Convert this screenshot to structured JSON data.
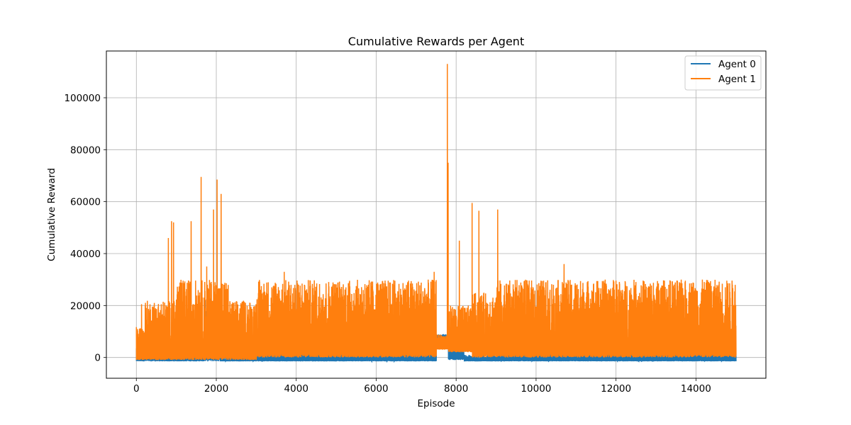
{
  "chart_data": {
    "type": "line",
    "title": "Cumulative Rewards per Agent",
    "xlabel": "Episode",
    "ylabel": "Cumulative Reward",
    "xlim": [
      -750,
      15750
    ],
    "ylim": [
      -8000,
      118000
    ],
    "xticks": [
      0,
      2000,
      4000,
      6000,
      8000,
      10000,
      12000,
      14000
    ],
    "yticks": [
      0,
      20000,
      40000,
      60000,
      80000,
      100000
    ],
    "grid": true,
    "legend_position": "top-right",
    "series": [
      {
        "name": "Agent 0",
        "color": "#1f77b4",
        "segments": [
          {
            "x0": 0,
            "x1": 100,
            "low": -1500,
            "high": 5000
          },
          {
            "x0": 100,
            "x1": 500,
            "low": -1500,
            "high": 9500
          },
          {
            "x0": 500,
            "x1": 1000,
            "low": -1500,
            "high": 4000
          },
          {
            "x0": 1000,
            "x1": 1700,
            "low": -1500,
            "high": 6000
          },
          {
            "x0": 1700,
            "x1": 2100,
            "low": -1500,
            "high": 23000
          },
          {
            "x0": 2100,
            "x1": 3000,
            "low": -1500,
            "high": 1500
          },
          {
            "x0": 3000,
            "x1": 7500,
            "low": -1500,
            "high": 3000
          },
          {
            "x0": 7500,
            "x1": 7800,
            "low": 6000,
            "high": 9000
          },
          {
            "x0": 7800,
            "x1": 8200,
            "low": -1000,
            "high": 11000
          },
          {
            "x0": 8200,
            "x1": 9000,
            "low": -1500,
            "high": 1000
          },
          {
            "x0": 9000,
            "x1": 15000,
            "low": -1500,
            "high": 3000
          }
        ]
      },
      {
        "name": "Agent 1",
        "color": "#ff7f0e",
        "segments": [
          {
            "x0": 0,
            "x1": 200,
            "low": -1000,
            "high": 12000
          },
          {
            "x0": 200,
            "x1": 1000,
            "low": -1000,
            "high": 22000
          },
          {
            "x0": 1000,
            "x1": 2300,
            "low": -1000,
            "high": 30000
          },
          {
            "x0": 2300,
            "x1": 3000,
            "low": -1000,
            "high": 22000
          },
          {
            "x0": 3000,
            "x1": 7500,
            "low": 0,
            "high": 30000
          },
          {
            "x0": 7500,
            "x1": 7800,
            "low": 3000,
            "high": 9000
          },
          {
            "x0": 7800,
            "x1": 8400,
            "low": 2000,
            "high": 20000
          },
          {
            "x0": 8400,
            "x1": 9000,
            "low": 0,
            "high": 25000
          },
          {
            "x0": 9000,
            "x1": 15000,
            "low": 0,
            "high": 30000
          }
        ],
        "peaks": [
          {
            "x": 130,
            "y": 20500
          },
          {
            "x": 430,
            "y": 19000
          },
          {
            "x": 800,
            "y": 46000
          },
          {
            "x": 880,
            "y": 52500
          },
          {
            "x": 930,
            "y": 52000
          },
          {
            "x": 1370,
            "y": 52500
          },
          {
            "x": 1620,
            "y": 69500
          },
          {
            "x": 1760,
            "y": 35000
          },
          {
            "x": 1930,
            "y": 57000
          },
          {
            "x": 2020,
            "y": 68500
          },
          {
            "x": 2120,
            "y": 63000
          },
          {
            "x": 3700,
            "y": 33000
          },
          {
            "x": 7450,
            "y": 33000
          },
          {
            "x": 7780,
            "y": 113000
          },
          {
            "x": 7800,
            "y": 75000
          },
          {
            "x": 8080,
            "y": 45000
          },
          {
            "x": 8400,
            "y": 59500
          },
          {
            "x": 8570,
            "y": 56500
          },
          {
            "x": 9040,
            "y": 57000
          },
          {
            "x": 10700,
            "y": 36000
          }
        ]
      }
    ]
  }
}
